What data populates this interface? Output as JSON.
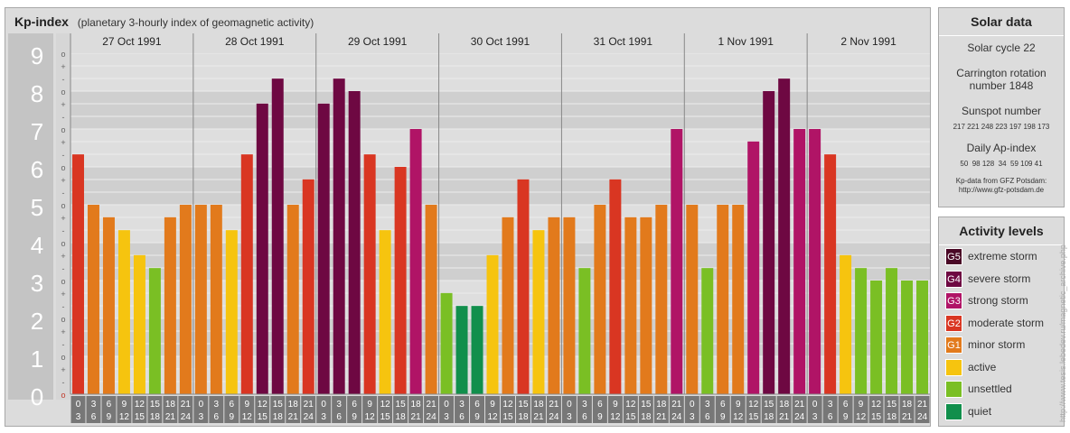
{
  "header": {
    "title": "Kp-index",
    "subtitle": "(planetary 3-hourly index of geomagnetic activity)"
  },
  "chart_data": {
    "type": "bar",
    "title": "Kp-index",
    "ylim": [
      0,
      9
    ],
    "y_tick_labels": [
      "0",
      "1",
      "2",
      "3",
      "4",
      "5",
      "6",
      "7",
      "8",
      "9"
    ],
    "y_minor_tick_labels": [
      "+",
      "o",
      "-"
    ],
    "days": [
      {
        "date": "27 Oct 1991",
        "kp": [
          6.33,
          5.0,
          4.67,
          4.33,
          3.67,
          3.33,
          4.67,
          5.0
        ]
      },
      {
        "date": "28 Oct 1991",
        "kp": [
          5.0,
          5.0,
          4.33,
          6.33,
          7.67,
          8.33,
          5.0,
          5.67
        ]
      },
      {
        "date": "29 Oct 1991",
        "kp": [
          7.67,
          8.33,
          8.0,
          6.33,
          4.33,
          6.0,
          7.0,
          5.0
        ]
      },
      {
        "date": "30 Oct 1991",
        "kp": [
          2.67,
          2.33,
          2.33,
          3.67,
          4.67,
          5.67,
          4.33,
          4.67
        ]
      },
      {
        "date": "31 Oct 1991",
        "kp": [
          4.67,
          3.33,
          5.0,
          5.67,
          4.67,
          4.67,
          5.0,
          7.0
        ]
      },
      {
        "date": "1 Nov 1991",
        "kp": [
          5.0,
          3.33,
          5.0,
          5.0,
          6.67,
          8.0,
          8.33,
          7.0
        ]
      },
      {
        "date": "2 Nov 1991",
        "kp": [
          7.0,
          6.33,
          3.67,
          3.33,
          3.0,
          3.33,
          3.0,
          3.0
        ]
      }
    ],
    "interval_start": [
      "0",
      "3",
      "6",
      "9",
      "12",
      "15",
      "18",
      "21"
    ],
    "interval_end": [
      "3",
      "6",
      "9",
      "12",
      "15",
      "18",
      "21",
      "24"
    ],
    "colors": {
      "G5": "#4a0826",
      "G4": "#6e0842",
      "G3": "#b01466",
      "G2": "#d93622",
      "G1": "#e27a1c",
      "active": "#f6c40f",
      "unsettled": "#7abf24",
      "quiet": "#118f4c"
    }
  },
  "solar_data": {
    "heading": "Solar data",
    "cycle": "Solar cycle 22",
    "carrington_line1": "Carrington rotation",
    "carrington_line2": "number 1848",
    "sunspot_label": "Sunspot number",
    "sunspot_values": "217 221 248 223 197 198 173",
    "ap_label": "Daily Ap-index",
    "ap_values": "50  98 128  34  59 109 41",
    "source_line1": "Kp-data from GFZ Potsdam:",
    "source_line2": "http://www.gfz-potsdam.de"
  },
  "activity_levels": {
    "heading": "Activity levels",
    "items": [
      {
        "badge": "G5",
        "label": "extreme storm",
        "color": "#4a0826"
      },
      {
        "badge": "G4",
        "label": "severe storm",
        "color": "#6e0842"
      },
      {
        "badge": "G3",
        "label": "strong storm",
        "color": "#b01466"
      },
      {
        "badge": "G2",
        "label": "moderate storm",
        "color": "#d93622"
      },
      {
        "badge": "G1",
        "label": "minor storm",
        "color": "#e27a1c"
      },
      {
        "badge": "",
        "label": "active",
        "color": "#f6c40f"
      },
      {
        "badge": "",
        "label": "unsettled",
        "color": "#7abf24"
      },
      {
        "badge": "",
        "label": "quiet",
        "color": "#118f4c"
      }
    ]
  },
  "credit": "http://www.tesis.lebedev.ru/magnetic_archive.php"
}
